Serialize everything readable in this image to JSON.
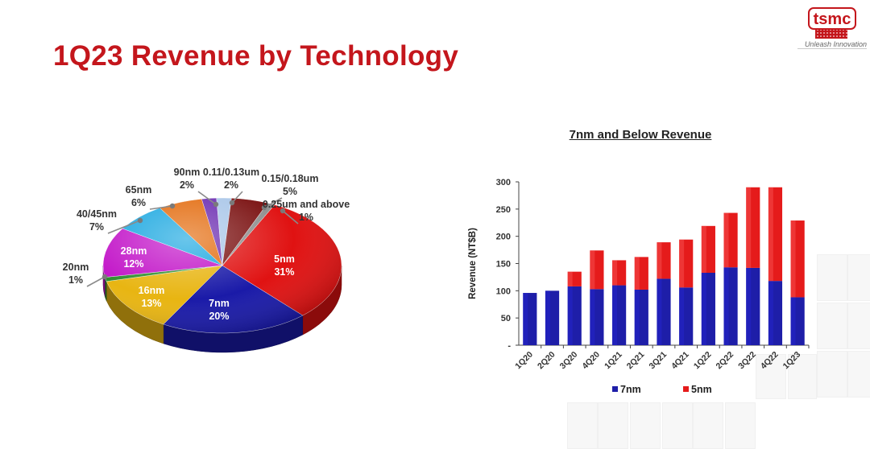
{
  "slide": {
    "title": "1Q23 Revenue by Technology",
    "logo_text": "tsmc",
    "logo_tagline": "Unleash Innovation",
    "accent_color": "#c4161c"
  },
  "chart_data": [
    {
      "type": "pie",
      "title": "",
      "slices": [
        {
          "label": "5nm",
          "value": 31,
          "display": "31%",
          "color": "#e01212"
        },
        {
          "label": "7nm",
          "value": 20,
          "display": "20%",
          "color": "#1a1aa8"
        },
        {
          "label": "16nm",
          "value": 13,
          "display": "13%",
          "color": "#e8b512"
        },
        {
          "label": "20nm",
          "value": 1,
          "display": "1%",
          "color": "#2f8f2f"
        },
        {
          "label": "28nm",
          "value": 12,
          "display": "12%",
          "color": "#c214c8"
        },
        {
          "label": "40/45nm",
          "value": 7,
          "display": "7%",
          "color": "#1aa7e0"
        },
        {
          "label": "65nm",
          "value": 6,
          "display": "6%",
          "color": "#e36a0c"
        },
        {
          "label": "90nm",
          "value": 2,
          "display": "2%",
          "color": "#6a2ab0"
        },
        {
          "label": "0.11/0.13um",
          "value": 2,
          "display": "2%",
          "color": "#a9c6e8"
        },
        {
          "label": "0.15/0.18um",
          "value": 5,
          "display": "5%",
          "color": "#7a1010"
        },
        {
          "label": "0.25um and above",
          "value": 1,
          "display": "1%",
          "color": "#8e8e8e"
        }
      ]
    },
    {
      "type": "bar",
      "stacked": true,
      "title": "7nm and Below Revenue",
      "ylabel": "Revenue (NT$B)",
      "ylim": [
        0,
        300
      ],
      "yticks": [
        {
          "value": 0,
          "label": "-"
        },
        {
          "value": 50,
          "label": "50"
        },
        {
          "value": 100,
          "label": "100"
        },
        {
          "value": 150,
          "label": "150"
        },
        {
          "value": 200,
          "label": "200"
        },
        {
          "value": 250,
          "label": "250"
        },
        {
          "value": 300,
          "label": "300"
        }
      ],
      "categories": [
        "1Q20",
        "2Q20",
        "3Q20",
        "4Q20",
        "1Q21",
        "2Q21",
        "3Q21",
        "4Q21",
        "1Q22",
        "2Q22",
        "3Q22",
        "4Q22",
        "1Q23"
      ],
      "series": [
        {
          "name": "7nm",
          "color": "#1e1ea8",
          "values": [
            96,
            100,
            108,
            103,
            110,
            102,
            122,
            106,
            133,
            143,
            142,
            118,
            88
          ]
        },
        {
          "name": "5nm",
          "color": "#e51b1b",
          "values": [
            0,
            0,
            27,
            71,
            46,
            60,
            67,
            88,
            86,
            100,
            148,
            172,
            141
          ]
        }
      ],
      "legend_position": "bottom",
      "grid": false
    }
  ]
}
